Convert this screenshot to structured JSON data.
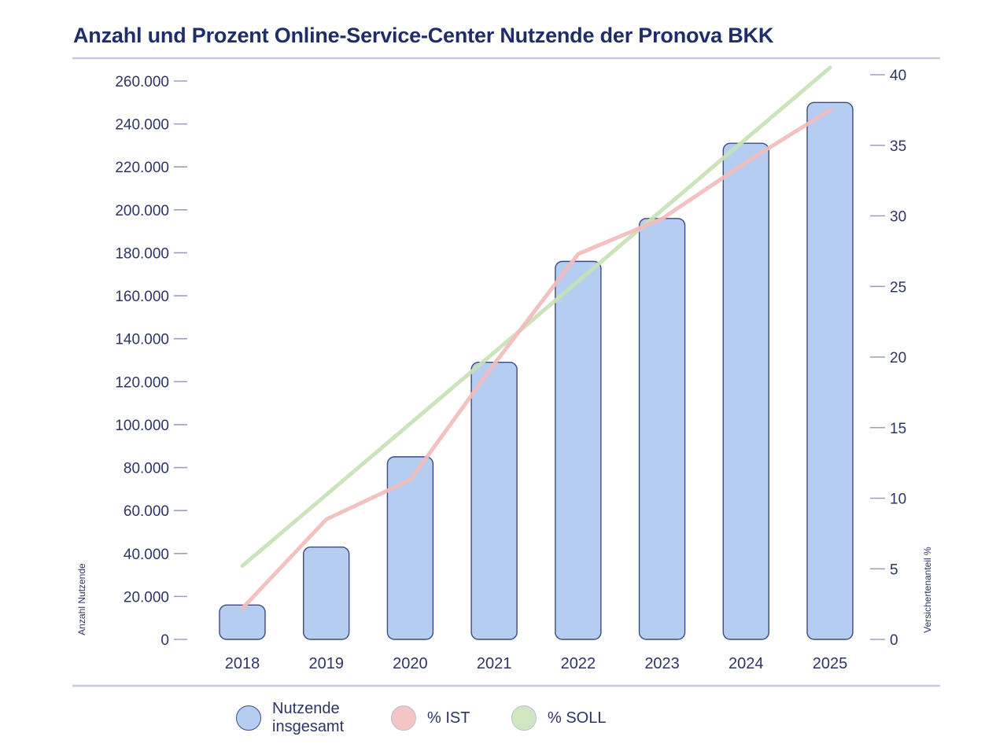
{
  "chart_data": {
    "type": "bar",
    "title": "Anzahl und Prozent Online-Service-Center Nutzende der Pronova BKK",
    "categories": [
      "2018",
      "2019",
      "2020",
      "2021",
      "2022",
      "2023",
      "2024",
      "2025"
    ],
    "series": [
      {
        "name": "Nutzende insgesamt",
        "type": "bar",
        "axis": "left",
        "color": "#b5cdf0",
        "values": [
          16000,
          43000,
          85000,
          129000,
          176000,
          196000,
          231000,
          250000
        ]
      },
      {
        "name": "% IST",
        "type": "line",
        "axis": "right",
        "color": "#f2bcbc",
        "values": [
          2.2,
          8.5,
          11.3,
          19.5,
          27.3,
          29.8,
          33.8,
          37.5
        ]
      },
      {
        "name": "% SOLL",
        "type": "line",
        "axis": "right",
        "color": "#c8e2b6",
        "values": [
          5.2,
          null,
          null,
          null,
          null,
          null,
          null,
          40.5
        ]
      }
    ],
    "ylabel": "Anzahl Nutzende",
    "ylabel_right": "Versichertenanteil %",
    "ylim": [
      0,
      260000
    ],
    "ylim_right": [
      0,
      40
    ],
    "yticks": [
      {
        "value": 0,
        "label": "0"
      },
      {
        "value": 20000,
        "label": "20.000"
      },
      {
        "value": 40000,
        "label": "40.000"
      },
      {
        "value": 60000,
        "label": "60.000"
      },
      {
        "value": 80000,
        "label": "80.000"
      },
      {
        "value": 100000,
        "label": "100.000"
      },
      {
        "value": 120000,
        "label": "120.000"
      },
      {
        "value": 140000,
        "label": "140.000"
      },
      {
        "value": 160000,
        "label": "160.000"
      },
      {
        "value": 180000,
        "label": "180.000"
      },
      {
        "value": 200000,
        "label": "200.000"
      },
      {
        "value": 220000,
        "label": "220.000"
      },
      {
        "value": 240000,
        "label": "240.000"
      },
      {
        "value": 260000,
        "label": "260.000"
      }
    ],
    "yticks_right": [
      {
        "value": 0,
        "label": "0"
      },
      {
        "value": 5,
        "label": "5"
      },
      {
        "value": 10,
        "label": "10"
      },
      {
        "value": 15,
        "label": "15"
      },
      {
        "value": 20,
        "label": "20"
      },
      {
        "value": 25,
        "label": "25"
      },
      {
        "value": 30,
        "label": "30"
      },
      {
        "value": 35,
        "label": "35"
      },
      {
        "value": 40,
        "label": "40"
      }
    ],
    "grid": false,
    "legend": "bottom",
    "colors": {
      "title": "#1f2d6b",
      "text": "#2c3566",
      "bar_stroke": "#3b4a86",
      "rule": "#c5c9dc",
      "tick": "#9aa0bc"
    }
  },
  "legend": {
    "bars_label": "Nutzende insgesamt",
    "ist_label": "% IST",
    "soll_label": "% SOLL"
  }
}
